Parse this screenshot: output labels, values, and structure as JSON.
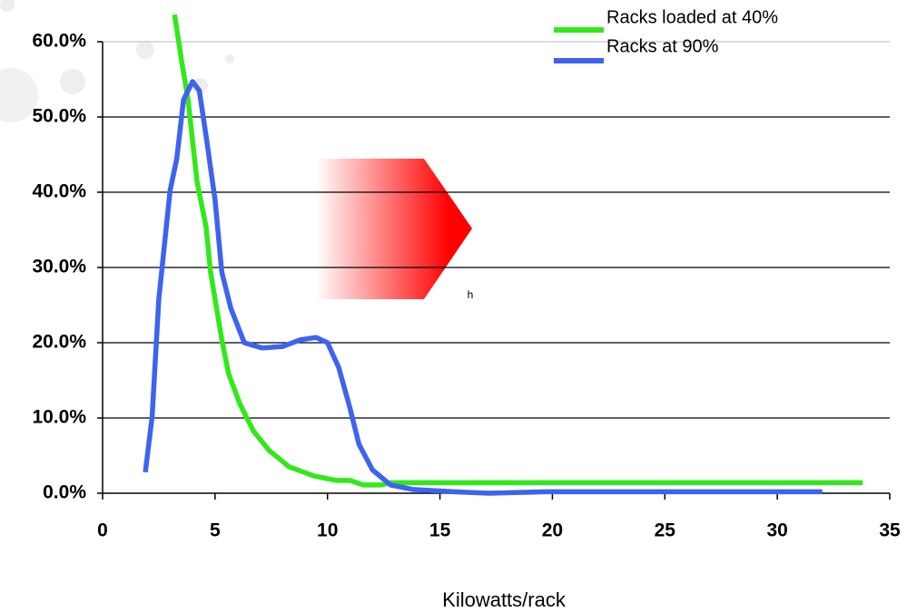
{
  "chart_data": {
    "type": "line",
    "x_label": "Kilowatts/rack",
    "annotation": "h",
    "xlim": [
      0,
      35
    ],
    "xticks": [
      0,
      5,
      10,
      15,
      20,
      25,
      30,
      35
    ],
    "ylim": [
      0,
      60
    ],
    "yticks": [
      {
        "value": 0,
        "label": "0.0%"
      },
      {
        "value": 10,
        "label": "10.0%"
      },
      {
        "value": 20,
        "label": "20.0%"
      },
      {
        "value": 30,
        "label": "30.0%"
      },
      {
        "value": 40,
        "label": "40.0%"
      },
      {
        "value": 50,
        "label": "50.0%"
      },
      {
        "value": 60,
        "label": "60.0%"
      }
    ],
    "grid": true,
    "legend": "top-right",
    "series": [
      {
        "name": "Racks loaded at 40%",
        "color": "#33e81a",
        "x": [
          3.2,
          3.5,
          3.8,
          4.2,
          4.6,
          4.8,
          5.3,
          5.6,
          6.1,
          6.7,
          7.4,
          8.3,
          9.4,
          10.4,
          11.0,
          11.6,
          12.4,
          12.8,
          33.8
        ],
        "values": [
          63.6,
          57.7,
          52.3,
          41.4,
          35.4,
          29.4,
          20.4,
          15.9,
          11.9,
          8.3,
          5.7,
          3.5,
          2.3,
          1.7,
          1.7,
          1.1,
          1.1,
          1.4,
          1.4
        ]
      },
      {
        "name": "Racks at 90%",
        "color": "#3d63ef",
        "x": [
          1.9,
          2.2,
          2.5,
          3.0,
          3.3,
          3.6,
          4.0,
          4.3,
          4.6,
          5.0,
          5.3,
          5.7,
          6.3,
          7.1,
          8.0,
          8.8,
          9.5,
          10.0,
          10.5,
          11.0,
          11.4,
          12.0,
          12.8,
          13.8,
          15.6,
          17.2,
          19.7,
          32.0
        ],
        "values": [
          2.8,
          10.1,
          25.8,
          40.2,
          44.5,
          52.3,
          54.7,
          53.5,
          47.5,
          39.0,
          29.4,
          24.6,
          20.0,
          19.3,
          19.5,
          20.4,
          20.7,
          20.0,
          16.7,
          11.3,
          6.5,
          3.1,
          1.1,
          0.5,
          0.2,
          0,
          0.2,
          0.2
        ]
      }
    ]
  }
}
